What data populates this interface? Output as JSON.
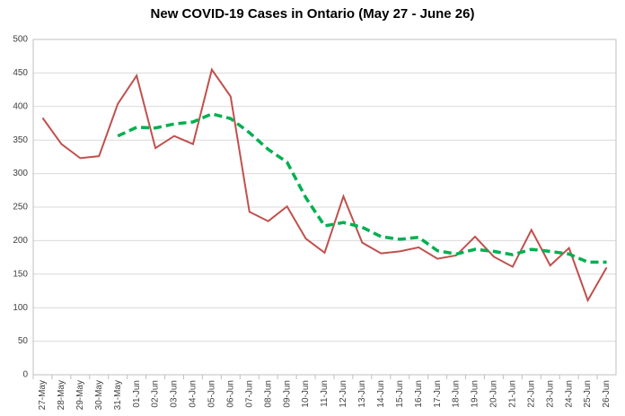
{
  "chart_data": {
    "type": "line",
    "title": "New COVID-19 Cases in Ontario (May 27 - June 26)",
    "categories": [
      "27-May",
      "28-May",
      "29-May",
      "30-May",
      "31-May",
      "01-Jun",
      "02-Jun",
      "03-Jun",
      "04-Jun",
      "05-Jun",
      "06-Jun",
      "07-Jun",
      "08-Jun",
      "09-Jun",
      "10-Jun",
      "11-Jun",
      "12-Jun",
      "13-Jun",
      "14-Jun",
      "15-Jun",
      "16-Jun",
      "17-Jun",
      "18-Jun",
      "19-Jun",
      "20-Jun",
      "21-Jun",
      "22-Jun",
      "23-Jun",
      "24-Jun",
      "25-Jun",
      "26-Jun"
    ],
    "series": [
      {
        "color": "#c0504d",
        "dash": false,
        "values": [
          383,
          344,
          323,
          326,
          404,
          446,
          338,
          356,
          344,
          455,
          415,
          243,
          229,
          251,
          203,
          182,
          266,
          197,
          181,
          184,
          190,
          173,
          178,
          206,
          176,
          161,
          216,
          163,
          189,
          111,
          160
        ]
      },
      {
        "color": "#00b050",
        "dash": true,
        "values": [
          null,
          null,
          null,
          null,
          356,
          369,
          368,
          374,
          377,
          389,
          382,
          361,
          336,
          317,
          264,
          222,
          227,
          220,
          206,
          202,
          205,
          185,
          180,
          187,
          184,
          179,
          187,
          184,
          180,
          168,
          168
        ]
      }
    ],
    "ylim": [
      0,
      500
    ],
    "yticks": [
      0,
      50,
      100,
      150,
      200,
      250,
      300,
      350,
      400,
      450,
      500
    ],
    "grid": true
  }
}
